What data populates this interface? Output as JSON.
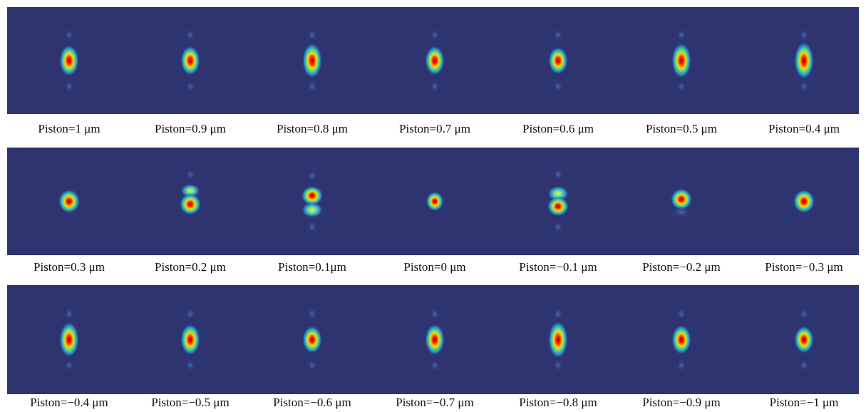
{
  "rows": [
    {
      "labels": [
        "Piston=1 μm",
        "Piston=0.9 μm",
        "Piston=0.8 μm",
        "Piston=0.7 μm",
        "Piston=0.6 μm",
        "Piston=0.5 μm",
        "Piston=0.4 μm"
      ]
    },
    {
      "labels": [
        "Piston=0.3 μm",
        "Piston=0.2 μm",
        "Piston=0.1μm",
        "Piston=0 μm",
        "Piston=−0.1 μm",
        "Piston=−0.2 μm",
        "Piston=−0.3 μm"
      ]
    },
    {
      "labels": [
        "Piston=−0.4 μm",
        "Piston=−0.5 μm",
        "Piston=−0.6 μm",
        "Piston=−0.7 μm",
        "Piston=−0.8 μm",
        "Piston=−0.9 μm",
        "Piston=−1 μm"
      ]
    }
  ]
}
